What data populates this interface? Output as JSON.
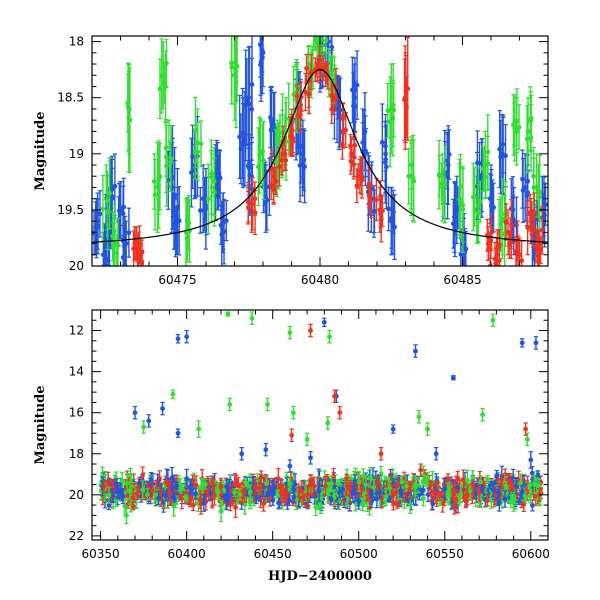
{
  "chart_data": [
    {
      "id": "top",
      "type": "scatter",
      "title": "",
      "xlabel": "",
      "ylabel": "Magnitude",
      "xlim": [
        60472,
        60488
      ],
      "ylim": [
        20,
        17.95
      ],
      "y_inverted": true,
      "xticks_major": [
        60475,
        60480,
        60485
      ],
      "xticks_minor_step": 1,
      "yticks_major": [
        18,
        18.5,
        19,
        19.5,
        20
      ],
      "yticks_minor_step": 0.1,
      "yticklabels": [
        "18",
        "18.5",
        "19",
        "19.5",
        "20"
      ],
      "xticklabels": [
        "60475",
        "60480",
        "60485"
      ],
      "grid": false,
      "error_bars": true,
      "series": [
        {
          "color": "#2255dd",
          "points": [
            [
              60472.2,
              19.6,
              0.25
            ],
            [
              60472.4,
              19.9,
              0.2
            ],
            [
              60472.6,
              19.7,
              0.3
            ],
            [
              60472.7,
              19.4,
              0.35
            ],
            [
              60473.0,
              19.5,
              0.25
            ],
            [
              60473.2,
              19.8,
              0.2
            ],
            [
              60474.8,
              19.3,
              0.4
            ],
            [
              60475.0,
              19.6,
              0.3
            ],
            [
              60475.6,
              19.1,
              0.3
            ],
            [
              60475.9,
              19.4,
              0.3
            ],
            [
              60476.4,
              19.2,
              0.3
            ],
            [
              60476.6,
              19.6,
              0.25
            ],
            [
              60477.3,
              18.9,
              0.4
            ],
            [
              60477.5,
              18.5,
              0.45
            ],
            [
              60477.6,
              19.2,
              0.3
            ],
            [
              60478.0,
              18.1,
              0.3
            ],
            [
              60478.1,
              19.4,
              0.3
            ],
            [
              60478.3,
              18.7,
              0.3
            ],
            [
              60479.2,
              18.6,
              0.35
            ],
            [
              60479.4,
              19.0,
              0.3
            ],
            [
              60480.0,
              18.2,
              0.25
            ],
            [
              60480.3,
              18.0,
              0.3
            ],
            [
              60480.6,
              18.6,
              0.3
            ],
            [
              60481.2,
              18.5,
              0.3
            ],
            [
              60481.5,
              18.9,
              0.3
            ],
            [
              60481.8,
              19.4,
              0.3
            ],
            [
              60482.3,
              19.0,
              0.35
            ],
            [
              60482.5,
              19.6,
              0.3
            ],
            [
              60484.5,
              19.1,
              0.35
            ],
            [
              60484.8,
              19.5,
              0.3
            ],
            [
              60485.0,
              19.8,
              0.2
            ],
            [
              60485.6,
              19.2,
              0.3
            ],
            [
              60486.0,
              19.4,
              0.3
            ],
            [
              60486.4,
              19.0,
              0.35
            ],
            [
              60486.8,
              19.6,
              0.3
            ],
            [
              60487.2,
              19.3,
              0.3
            ],
            [
              60487.5,
              19.7,
              0.25
            ],
            [
              60487.8,
              19.5,
              0.3
            ]
          ]
        },
        {
          "color": "#33dd33",
          "points": [
            [
              60472.5,
              19.4,
              0.3
            ],
            [
              60472.8,
              19.8,
              0.25
            ],
            [
              60473.3,
              18.6,
              0.4
            ],
            [
              60474.3,
              19.3,
              0.4
            ],
            [
              60474.5,
              18.3,
              0.3
            ],
            [
              60474.7,
              19.0,
              0.3
            ],
            [
              60475.3,
              19.7,
              0.3
            ],
            [
              60475.7,
              18.9,
              0.3
            ],
            [
              60476.2,
              19.3,
              0.3
            ],
            [
              60477.0,
              18.3,
              0.4
            ],
            [
              60477.9,
              19.0,
              0.3
            ],
            [
              60478.5,
              19.0,
              0.3
            ],
            [
              60478.8,
              18.8,
              0.3
            ],
            [
              60479.2,
              18.5,
              0.3
            ],
            [
              60479.7,
              18.3,
              0.2
            ],
            [
              60479.9,
              18.0,
              0.15
            ],
            [
              60480.1,
              18.1,
              0.15
            ],
            [
              60480.4,
              18.3,
              0.2
            ],
            [
              60482.5,
              18.6,
              0.4
            ],
            [
              60483.2,
              19.2,
              0.35
            ],
            [
              60484.3,
              19.3,
              0.3
            ],
            [
              60484.9,
              19.4,
              0.35
            ],
            [
              60485.5,
              19.5,
              0.3
            ],
            [
              60485.8,
              19.1,
              0.3
            ],
            [
              60486.4,
              19.6,
              0.3
            ],
            [
              60486.9,
              18.8,
              0.3
            ],
            [
              60487.3,
              18.8,
              0.3
            ],
            [
              60487.6,
              19.3,
              0.3
            ]
          ]
        },
        {
          "color": "#ee3322",
          "points": [
            [
              60473.5,
              19.8,
              0.15
            ],
            [
              60473.7,
              19.9,
              0.15
            ],
            [
              60477.6,
              19.5,
              0.2
            ],
            [
              60478.4,
              19.2,
              0.15
            ],
            [
              60478.7,
              19.0,
              0.15
            ],
            [
              60479.0,
              18.8,
              0.15
            ],
            [
              60479.3,
              18.6,
              0.15
            ],
            [
              60479.6,
              18.35,
              0.15
            ],
            [
              60479.9,
              18.25,
              0.1
            ],
            [
              60480.2,
              18.3,
              0.1
            ],
            [
              60480.5,
              18.5,
              0.15
            ],
            [
              60480.8,
              18.8,
              0.15
            ],
            [
              60481.1,
              19.0,
              0.15
            ],
            [
              60481.4,
              19.2,
              0.15
            ],
            [
              60481.7,
              19.3,
              0.15
            ],
            [
              60482.1,
              19.5,
              0.2
            ],
            [
              60483.0,
              18.5,
              0.4
            ],
            [
              60485.9,
              19.8,
              0.15
            ],
            [
              60486.2,
              19.9,
              0.15
            ],
            [
              60486.6,
              19.7,
              0.2
            ],
            [
              60487.0,
              19.9,
              0.15
            ],
            [
              60487.4,
              19.6,
              0.2
            ],
            [
              60487.7,
              19.8,
              0.2
            ]
          ]
        }
      ],
      "model": {
        "color": "#000000",
        "t0": 60480.0,
        "peak_mag": 18.25,
        "base_mag": 19.85,
        "width_days": 1.6
      }
    },
    {
      "id": "bottom",
      "type": "scatter",
      "title": "",
      "xlabel": "HJD−2400000",
      "ylabel": "Magnitude",
      "xlim": [
        60345,
        60610
      ],
      "ylim": [
        22.2,
        11
      ],
      "y_inverted": true,
      "xticks_major": [
        60350,
        60400,
        60450,
        60500,
        60550,
        60600
      ],
      "xticks_minor_step": 10,
      "yticks_major": [
        12,
        14,
        16,
        18,
        20,
        22
      ],
      "yticks_minor_step": 0.5,
      "xticklabels": [
        "60350",
        "60400",
        "60450",
        "60500",
        "60550",
        "60600"
      ],
      "yticklabels": [
        "12",
        "14",
        "16",
        "18",
        "20",
        "22"
      ],
      "grid": false,
      "error_bars": true,
      "series": [
        {
          "color": "#2255dd",
          "points": [
            [
              60395,
              12.4,
              0.2
            ],
            [
              60400,
              12.3,
              0.3
            ],
            [
              60370,
              16.0,
              0.3
            ],
            [
              60378,
              16.4,
              0.3
            ],
            [
              60386,
              15.8,
              0.3
            ],
            [
              60395,
              17.0,
              0.2
            ],
            [
              60432,
              18.0,
              0.3
            ],
            [
              60446,
              17.8,
              0.3
            ],
            [
              60460,
              18.6,
              0.3
            ],
            [
              60472,
              18.2,
              0.3
            ],
            [
              60480,
              11.6,
              0.2
            ],
            [
              60487,
              15.2,
              0.3
            ],
            [
              60520,
              16.8,
              0.2
            ],
            [
              60533,
              13.0,
              0.3
            ],
            [
              60545,
              18.0,
              0.3
            ],
            [
              60555,
              14.3,
              0.1
            ],
            [
              60595,
              12.6,
              0.2
            ],
            [
              60603,
              12.6,
              0.3
            ],
            [
              60600,
              18.3,
              0.4
            ],
            [
              60360,
              19.8,
              0.4
            ],
            [
              60410,
              20.4,
              0.4
            ],
            [
              60450,
              19.8,
              0.5
            ],
            [
              60500,
              20.3,
              0.4
            ],
            [
              60550,
              19.7,
              0.5
            ],
            [
              60585,
              20.2,
              0.4
            ]
          ]
        },
        {
          "color": "#33dd33",
          "points": [
            [
              60424,
              11.2,
              0.1
            ],
            [
              60438,
              11.4,
              0.3
            ],
            [
              60460,
              12.1,
              0.3
            ],
            [
              60472,
              12.0,
              0.3
            ],
            [
              60483,
              12.3,
              0.3
            ],
            [
              60578,
              11.5,
              0.3
            ],
            [
              60375,
              16.7,
              0.3
            ],
            [
              60392,
              15.1,
              0.2
            ],
            [
              60407,
              16.8,
              0.4
            ],
            [
              60425,
              15.6,
              0.3
            ],
            [
              60447,
              15.6,
              0.3
            ],
            [
              60462,
              16.0,
              0.3
            ],
            [
              60470,
              17.3,
              0.3
            ],
            [
              60482,
              16.5,
              0.3
            ],
            [
              60535,
              16.2,
              0.3
            ],
            [
              60540,
              16.8,
              0.3
            ],
            [
              60572,
              16.1,
              0.3
            ],
            [
              60598,
              17.3,
              0.3
            ],
            [
              60365,
              21.0,
              0.4
            ],
            [
              60420,
              20.8,
              0.5
            ],
            [
              60475,
              20.6,
              0.4
            ],
            [
              60530,
              20.5,
              0.4
            ],
            [
              60590,
              20.4,
              0.4
            ]
          ]
        },
        {
          "color": "#ee3322",
          "points": [
            [
              60472,
              12.0,
              0.3
            ],
            [
              60461,
              17.1,
              0.3
            ],
            [
              60486,
              15.2,
              0.3
            ],
            [
              60489,
              16.0,
              0.3
            ],
            [
              60513,
              18.0,
              0.3
            ],
            [
              60536,
              18.8,
              0.3
            ],
            [
              60597,
              16.8,
              0.3
            ],
            [
              60352,
              19.6,
              0.3
            ],
            [
              60380,
              19.8,
              0.4
            ],
            [
              60420,
              19.6,
              0.4
            ],
            [
              60455,
              19.9,
              0.4
            ],
            [
              60495,
              19.7,
              0.4
            ],
            [
              60530,
              19.8,
              0.4
            ],
            [
              60570,
              19.9,
              0.4
            ],
            [
              60605,
              20.0,
              0.3
            ]
          ]
        }
      ],
      "dense_band": {
        "x_start": 60350,
        "x_end": 60606,
        "center_mag": 19.8,
        "spread_mag": 0.45
      }
    }
  ]
}
